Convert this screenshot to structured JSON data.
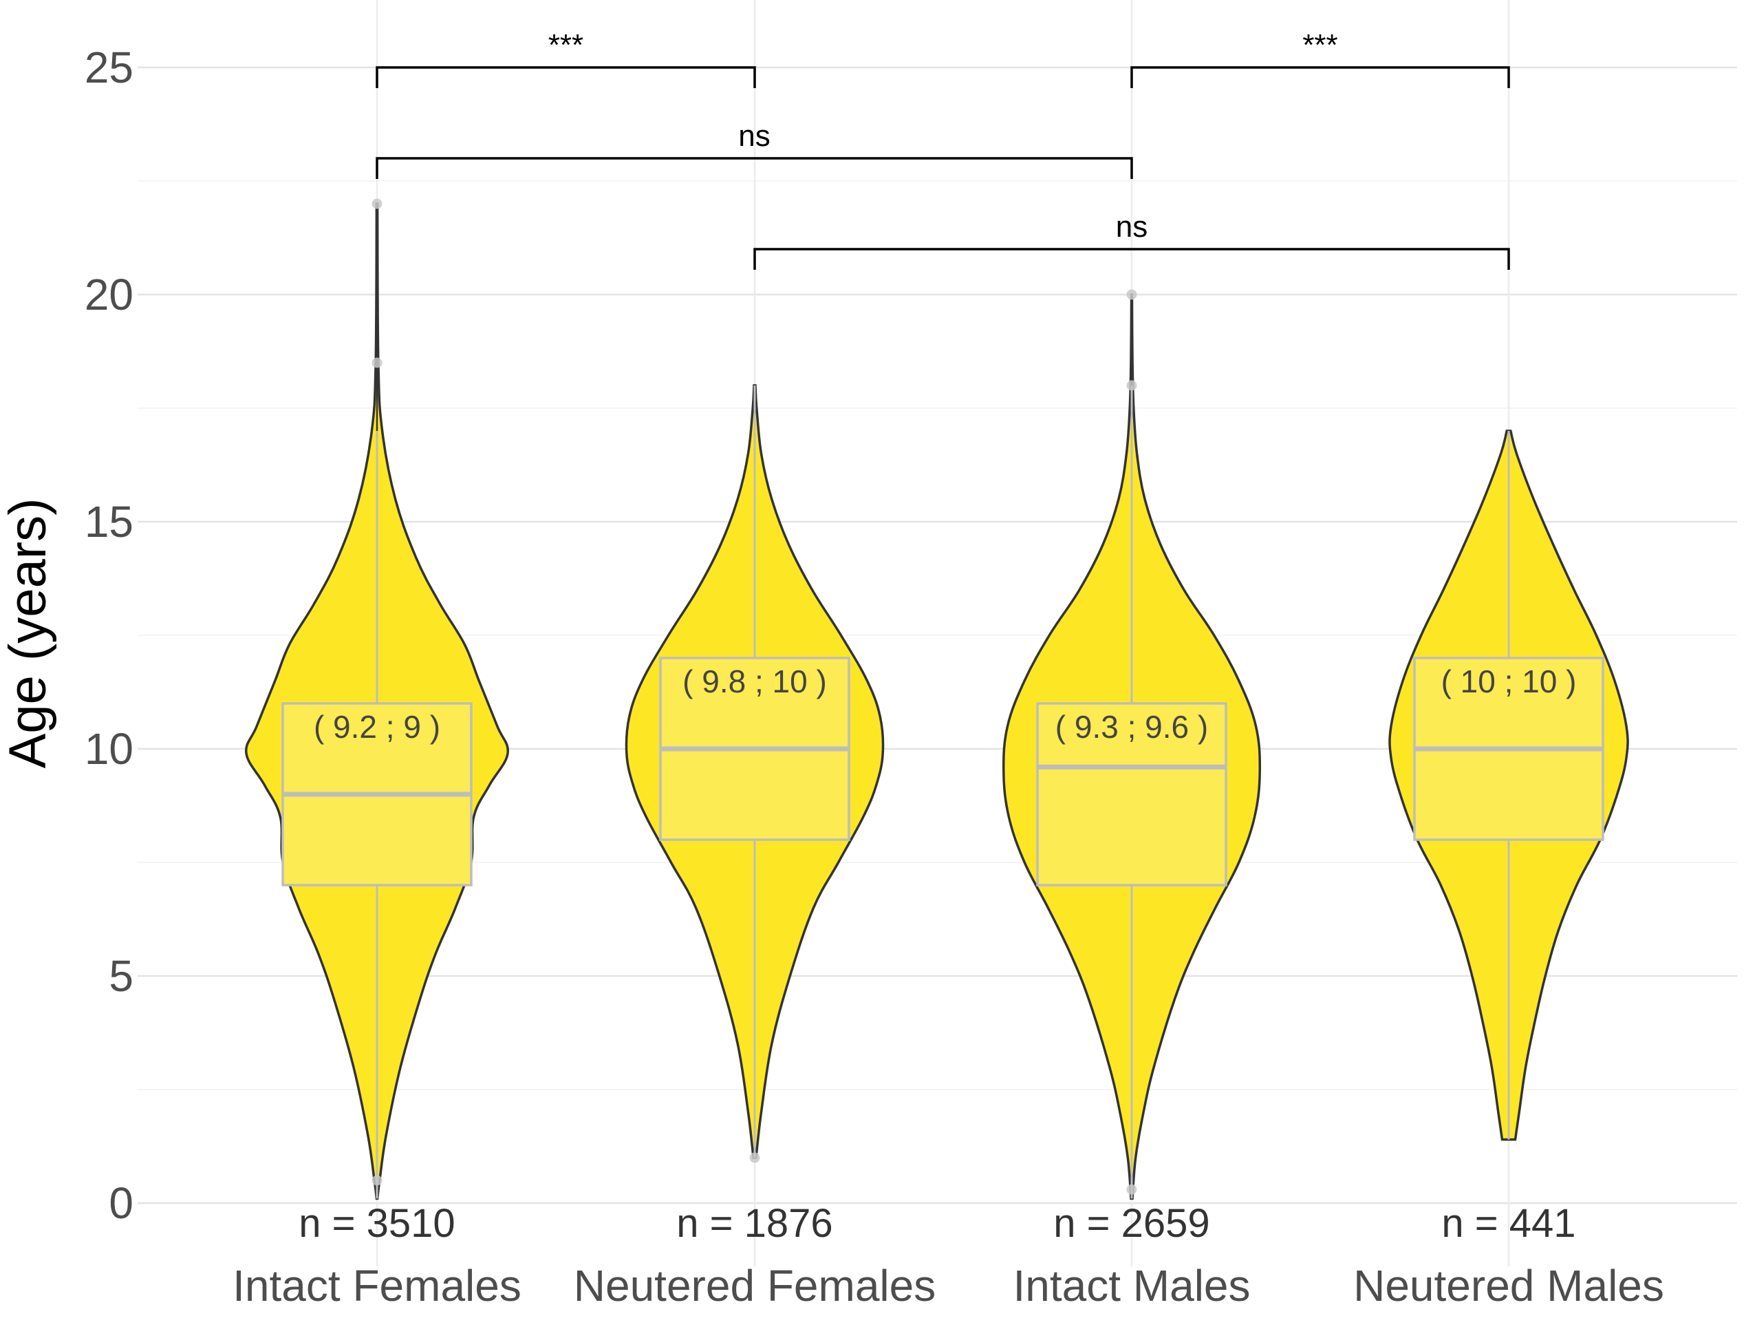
{
  "chart_data": {
    "type": "violin",
    "title": "",
    "xlabel": "",
    "ylabel": "Age (years)",
    "ylim": [
      0,
      25
    ],
    "y_ticks": [
      "0",
      "5",
      "10",
      "15",
      "20",
      "25"
    ],
    "grid": true,
    "colors": {
      "violin_fill": "#FDE725",
      "violin_stroke": "#333333",
      "box_fill": "#FCEB52",
      "box_stroke": "#BDBDBD",
      "outlier": "#C8C8C8"
    },
    "groups": [
      {
        "category": "Intact Females",
        "n_label": "n = 3510",
        "box_label": "( 9.2 ; 9 )",
        "q1": 7,
        "median": 9,
        "q3": 11,
        "whisker_low": 0.1,
        "whisker_high": 17,
        "outliers": [
          18.5,
          22,
          0.5
        ],
        "violin_min": 0.1,
        "violin_max": 22,
        "violin_profile": [
          [
            0.1,
            0.003
          ],
          [
            0.5,
            0.02
          ],
          [
            1.5,
            0.07
          ],
          [
            3,
            0.18
          ],
          [
            4.5,
            0.33
          ],
          [
            5.5,
            0.45
          ],
          [
            6.5,
            0.6
          ],
          [
            7.5,
            0.72
          ],
          [
            8.5,
            0.74
          ],
          [
            9.2,
            0.86
          ],
          [
            9.9,
            1.0
          ],
          [
            10.5,
            0.92
          ],
          [
            11.5,
            0.78
          ],
          [
            12.3,
            0.67
          ],
          [
            13.2,
            0.48
          ],
          [
            14.2,
            0.3
          ],
          [
            15.5,
            0.14
          ],
          [
            17,
            0.04
          ],
          [
            18.5,
            0.01
          ],
          [
            22,
            0.003
          ]
        ]
      },
      {
        "category": "Neutered Females",
        "n_label": "n = 1876",
        "box_label": "( 9.8 ; 10 )",
        "q1": 8,
        "median": 10,
        "q3": 12,
        "whisker_low": 1,
        "whisker_high": 18,
        "outliers": [
          1
        ],
        "violin_min": 1,
        "violin_max": 18,
        "violin_profile": [
          [
            1,
            0.01
          ],
          [
            2,
            0.05
          ],
          [
            3.5,
            0.13
          ],
          [
            5,
            0.27
          ],
          [
            6.5,
            0.45
          ],
          [
            7.5,
            0.64
          ],
          [
            8.5,
            0.83
          ],
          [
            9.2,
            0.93
          ],
          [
            9.9,
            0.98
          ],
          [
            10.7,
            0.96
          ],
          [
            11.5,
            0.86
          ],
          [
            12.5,
            0.66
          ],
          [
            13.5,
            0.44
          ],
          [
            14.5,
            0.26
          ],
          [
            15.5,
            0.13
          ],
          [
            16.5,
            0.05
          ],
          [
            17.5,
            0.015
          ],
          [
            18,
            0.005
          ]
        ]
      },
      {
        "category": "Intact Males",
        "n_label": "n = 2659",
        "box_label": "( 9.3 ; 9.6 )",
        "q1": 7,
        "median": 9.6,
        "q3": 11,
        "whisker_low": 0.1,
        "whisker_high": 18,
        "outliers": [
          18,
          20,
          0.3
        ],
        "violin_min": 0.1,
        "violin_max": 20,
        "violin_profile": [
          [
            0.1,
            0.005
          ],
          [
            1,
            0.03
          ],
          [
            2,
            0.09
          ],
          [
            3,
            0.17
          ],
          [
            4.5,
            0.33
          ],
          [
            5.5,
            0.47
          ],
          [
            6.5,
            0.64
          ],
          [
            7.5,
            0.82
          ],
          [
            8.5,
            0.94
          ],
          [
            9.5,
            0.98
          ],
          [
            10.5,
            0.95
          ],
          [
            11.5,
            0.82
          ],
          [
            12.5,
            0.63
          ],
          [
            13.5,
            0.4
          ],
          [
            14.5,
            0.22
          ],
          [
            15.5,
            0.1
          ],
          [
            16.5,
            0.04
          ],
          [
            17.5,
            0.015
          ],
          [
            18.5,
            0.006
          ],
          [
            20,
            0.002
          ]
        ]
      },
      {
        "category": "Neutered Males",
        "n_label": "n = 441",
        "box_label": "( 10 ; 10 )",
        "q1": 8,
        "median": 10,
        "q3": 12,
        "whisker_low": 1.4,
        "whisker_high": 17,
        "outliers": [],
        "violin_min": 1.4,
        "violin_max": 17,
        "violin_profile": [
          [
            1.4,
            0.05
          ],
          [
            2,
            0.08
          ],
          [
            3,
            0.13
          ],
          [
            4,
            0.2
          ],
          [
            5,
            0.28
          ],
          [
            6,
            0.38
          ],
          [
            7,
            0.52
          ],
          [
            8,
            0.7
          ],
          [
            9,
            0.83
          ],
          [
            9.8,
            0.9
          ],
          [
            10.5,
            0.9
          ],
          [
            11.5,
            0.81
          ],
          [
            12.5,
            0.67
          ],
          [
            13.5,
            0.5
          ],
          [
            14.5,
            0.34
          ],
          [
            15.5,
            0.19
          ],
          [
            16.5,
            0.06
          ],
          [
            17,
            0.015
          ]
        ]
      }
    ],
    "comparisons": [
      {
        "from": 0,
        "to": 1,
        "y": 25,
        "label": "***"
      },
      {
        "from": 2,
        "to": 3,
        "y": 25,
        "label": "***"
      },
      {
        "from": 0,
        "to": 2,
        "y": 23,
        "label": "ns"
      },
      {
        "from": 1,
        "to": 3,
        "y": 21,
        "label": "ns"
      }
    ]
  }
}
